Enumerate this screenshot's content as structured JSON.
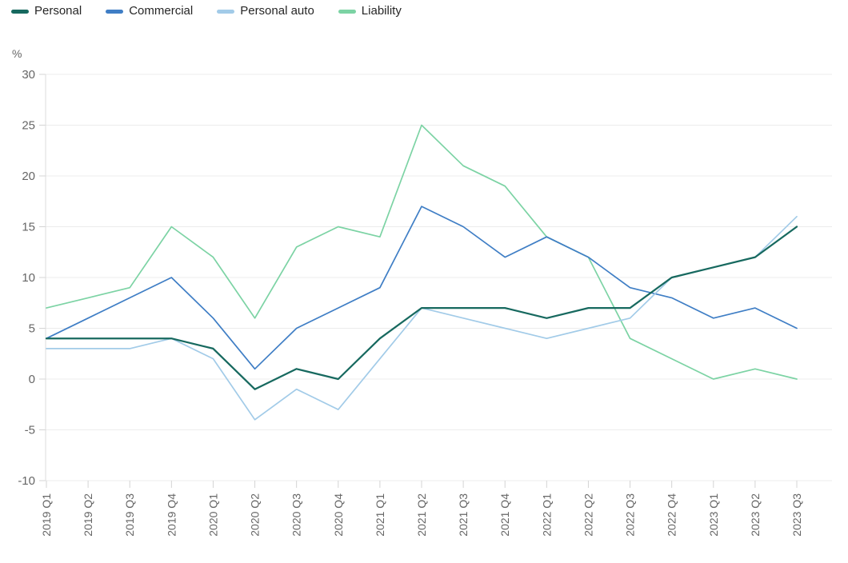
{
  "chart_data": {
    "type": "line",
    "title": "",
    "xlabel": "",
    "ylabel": "%",
    "ylim": [
      -10,
      30
    ],
    "yticks": [
      30,
      25,
      20,
      15,
      10,
      5,
      0,
      -5,
      -10
    ],
    "grid": true,
    "legend_position": "top-left",
    "categories": [
      "2019 Q1",
      "2019 Q2",
      "2019 Q3",
      "2019 Q4",
      "2020 Q1",
      "2020 Q2",
      "2020 Q3",
      "2020 Q4",
      "2021 Q1",
      "2021 Q2",
      "2021 Q3",
      "2021 Q4",
      "2022 Q1",
      "2022 Q2",
      "2022 Q3",
      "2022 Q4",
      "2023 Q1",
      "2023 Q2",
      "2023 Q3"
    ],
    "series": [
      {
        "name": "Personal",
        "color": "#17695f",
        "values": [
          4,
          4,
          4,
          4,
          3,
          -1,
          1,
          0,
          4,
          7,
          7,
          7,
          6,
          7,
          7,
          10,
          11,
          12,
          15
        ]
      },
      {
        "name": "Commercial",
        "color": "#3f7ec5",
        "values": [
          4,
          6,
          8,
          10,
          6,
          1,
          5,
          7,
          9,
          17,
          15,
          12,
          14,
          12,
          9,
          8,
          6,
          7,
          5
        ]
      },
      {
        "name": "Personal auto",
        "color": "#a2cbe8",
        "values": [
          3,
          3,
          3,
          4,
          2,
          -4,
          -1,
          -3,
          2,
          7,
          6,
          5,
          4,
          5,
          6,
          10,
          11,
          12,
          16
        ]
      },
      {
        "name": "Liability",
        "color": "#7cd3a4",
        "values": [
          7,
          8,
          9,
          15,
          12,
          6,
          13,
          15,
          14,
          25,
          21,
          19,
          14,
          12,
          4,
          2,
          0,
          1,
          0
        ]
      }
    ]
  }
}
